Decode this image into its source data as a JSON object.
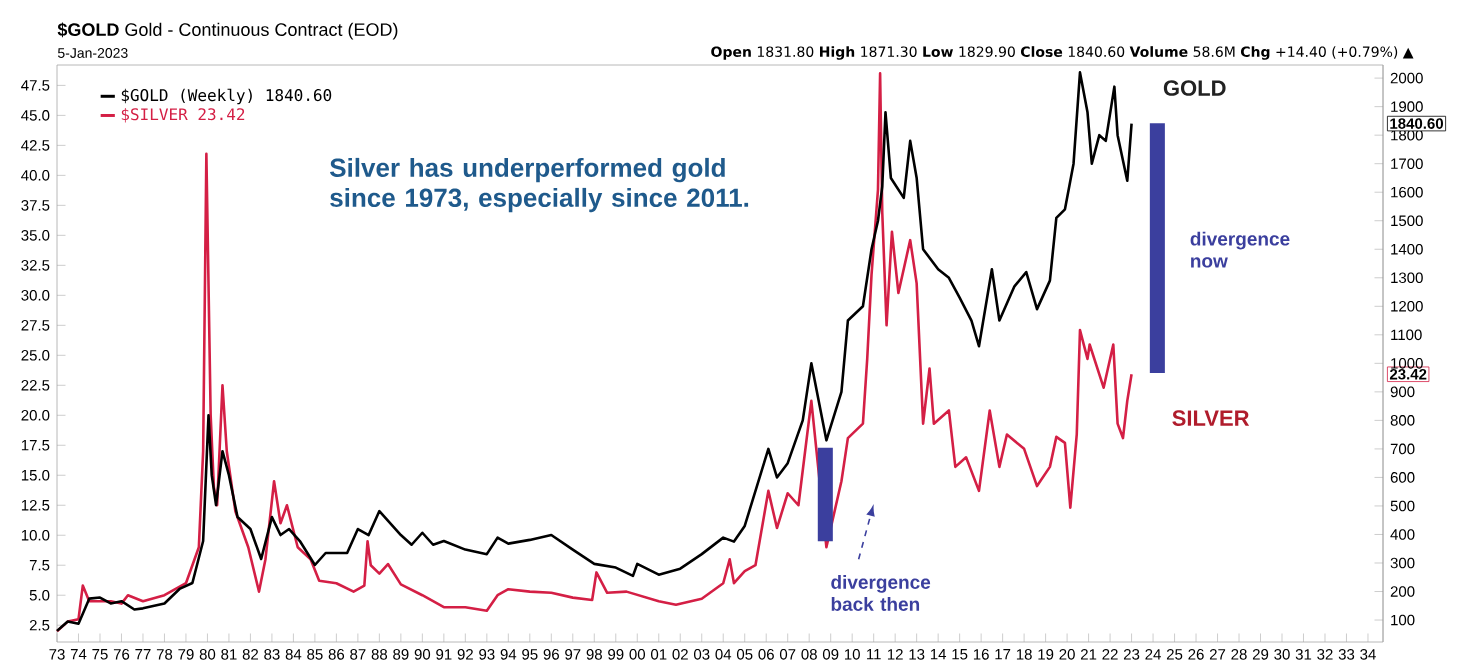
{
  "chart_data": {
    "type": "line",
    "title": "**$GOLD** Gold - Continuous Contract (EOD)",
    "subtitle": "5-Jan-2023",
    "legend": "top left",
    "xlim": [
      1973,
      2034.7
    ],
    "xticks": [
      {
        "value": 1973,
        "label": "73"
      },
      {
        "value": 1974,
        "label": "74"
      },
      {
        "value": 1975,
        "label": "75"
      },
      {
        "value": 1976,
        "label": "76"
      },
      {
        "value": 1977,
        "label": "77"
      },
      {
        "value": 1978,
        "label": "78"
      },
      {
        "value": 1979,
        "label": "79"
      },
      {
        "value": 1980,
        "label": "80"
      },
      {
        "value": 1981,
        "label": "81"
      },
      {
        "value": 1982,
        "label": "82"
      },
      {
        "value": 1983,
        "label": "83"
      },
      {
        "value": 1984,
        "label": "84"
      },
      {
        "value": 1985,
        "label": "85"
      },
      {
        "value": 1986,
        "label": "86"
      },
      {
        "value": 1987,
        "label": "87"
      },
      {
        "value": 1988,
        "label": "88"
      },
      {
        "value": 1989,
        "label": "89"
      },
      {
        "value": 1990,
        "label": "90"
      },
      {
        "value": 1991,
        "label": "91"
      },
      {
        "value": 1992,
        "label": "92"
      },
      {
        "value": 1993,
        "label": "93"
      },
      {
        "value": 1994,
        "label": "94"
      },
      {
        "value": 1995,
        "label": "95"
      },
      {
        "value": 1996,
        "label": "96"
      },
      {
        "value": 1997,
        "label": "97"
      },
      {
        "value": 1998,
        "label": "98"
      },
      {
        "value": 1999,
        "label": "99"
      },
      {
        "value": 2000,
        "label": "00"
      },
      {
        "value": 2001,
        "label": "01"
      },
      {
        "value": 2002,
        "label": "02"
      },
      {
        "value": 2003,
        "label": "03"
      },
      {
        "value": 2004,
        "label": "04"
      },
      {
        "value": 2005,
        "label": "05"
      },
      {
        "value": 2006,
        "label": "06"
      },
      {
        "value": 2007,
        "label": "07"
      },
      {
        "value": 2008,
        "label": "08"
      },
      {
        "value": 2009,
        "label": "09"
      },
      {
        "value": 2010,
        "label": "10"
      },
      {
        "value": 2011,
        "label": "11"
      },
      {
        "value": 2012,
        "label": "12"
      },
      {
        "value": 2013,
        "label": "13"
      },
      {
        "value": 2014,
        "label": "14"
      },
      {
        "value": 2015,
        "label": "15"
      },
      {
        "value": 2016,
        "label": "16"
      },
      {
        "value": 2017,
        "label": "17"
      },
      {
        "value": 2018,
        "label": "18"
      },
      {
        "value": 2019,
        "label": "19"
      },
      {
        "value": 2020,
        "label": "20"
      },
      {
        "value": 2021,
        "label": "21"
      },
      {
        "value": 2022,
        "label": "22"
      },
      {
        "value": 2023,
        "label": "23"
      },
      {
        "value": 2024,
        "label": "24"
      },
      {
        "value": 2025,
        "label": "25"
      },
      {
        "value": 2026,
        "label": "26"
      },
      {
        "value": 2027,
        "label": "27"
      },
      {
        "value": 2028,
        "label": "28"
      },
      {
        "value": 2029,
        "label": "29"
      },
      {
        "value": 2030,
        "label": "30"
      },
      {
        "value": 2031,
        "label": "31"
      },
      {
        "value": 2032,
        "label": "32"
      },
      {
        "value": 2033,
        "label": "33"
      },
      {
        "value": 2034,
        "label": "34"
      }
    ],
    "ylim": [
      1.1,
      49.2
    ],
    "yticks": [
      2.5,
      {
        "value": 5,
        "label": "5.0"
      },
      7.5,
      {
        "value": 10,
        "label": "10.0"
      },
      12.5,
      {
        "value": 15,
        "label": "15.0"
      },
      17.5,
      {
        "value": 20,
        "label": "20.0"
      },
      22.5,
      {
        "value": 25,
        "label": "25.0"
      },
      27.5,
      {
        "value": 30,
        "label": "30.0"
      },
      32.5,
      {
        "value": 35,
        "label": "35.0"
      },
      37.5,
      {
        "value": 40,
        "label": "40.0"
      },
      42.5,
      {
        "value": 45,
        "label": "45.0"
      },
      47.5
    ],
    "y2lim": [
      23,
      2046
    ],
    "y2ticks": [
      100,
      200,
      300,
      400,
      500,
      600,
      700,
      800,
      900,
      1000,
      1100,
      1200,
      1300,
      1400,
      1500,
      1600,
      1700,
      1800,
      1900,
      2000
    ],
    "series": [
      {
        "name": "$GOLD (Weekly) 1840.60",
        "color": "#000000",
        "axis": "y2",
        "x": [
          1973.0,
          1973.5,
          1974.0,
          1974.5,
          1975.0,
          1975.5,
          1976.0,
          1976.6,
          1977.0,
          1978.0,
          1978.7,
          1979.3,
          1979.8,
          1980.05,
          1980.2,
          1980.4,
          1980.7,
          1981.0,
          1981.4,
          1982.0,
          1982.5,
          1983.0,
          1983.4,
          1983.8,
          1984.3,
          1985.0,
          1985.5,
          1986.5,
          1987.0,
          1987.5,
          1988.0,
          1988.5,
          1989.0,
          1989.5,
          1990.0,
          1990.5,
          1991.0,
          1992.0,
          1993.0,
          1993.5,
          1994.0,
          1995.0,
          1996.0,
          1997.0,
          1998.0,
          1999.0,
          1999.8,
          2000.0,
          2001.0,
          2002.0,
          2003.0,
          2004.0,
          2004.5,
          2005.0,
          2006.1,
          2006.5,
          2007.0,
          2007.7,
          2008.1,
          2008.8,
          2009.5,
          2009.8,
          2010.5,
          2010.9,
          2011.2,
          2011.4,
          2011.55,
          2011.8,
          2012.4,
          2012.7,
          2013.0,
          2013.3,
          2014.0,
          2014.5,
          2015.0,
          2015.55,
          2015.9,
          2016.5,
          2016.85,
          2017.55,
          2018.1,
          2018.6,
          2019.2,
          2019.5,
          2019.9,
          2020.3,
          2020.6,
          2020.95,
          2021.15,
          2021.5,
          2021.8,
          2022.2,
          2022.35,
          2022.8,
          2023.0
        ],
        "values": [
          62,
          95,
          87,
          175,
          179,
          158,
          166,
          137,
          141,
          158,
          209,
          230,
          377,
          818,
          608,
          503,
          692,
          608,
          461,
          419,
          314,
          461,
          398,
          419,
          377,
          293,
          335,
          335,
          419,
          398,
          482,
          440,
          398,
          364,
          406,
          364,
          377,
          347,
          331,
          389,
          368,
          381,
          398,
          347,
          297,
          284,
          255,
          297,
          259,
          280,
          331,
          389,
          375,
          430,
          700,
          600,
          650,
          800,
          1000,
          730,
          900,
          1150,
          1200,
          1400,
          1500,
          1620,
          1880,
          1650,
          1580,
          1780,
          1650,
          1400,
          1330,
          1300,
          1230,
          1150,
          1060,
          1330,
          1150,
          1270,
          1320,
          1190,
          1290,
          1510,
          1540,
          1700,
          2020,
          1880,
          1700,
          1800,
          1780,
          1970,
          1800,
          1640,
          1840.6
        ]
      },
      {
        "name": "$SILVER 23.42",
        "color": "#d41f45",
        "axis": "y",
        "x": [
          1973.0,
          1973.5,
          1974.0,
          1974.2,
          1974.5,
          1975.0,
          1975.5,
          1976.0,
          1976.3,
          1977.0,
          1978.0,
          1979.0,
          1979.6,
          1979.8,
          1979.95,
          1980.15,
          1980.3,
          1980.45,
          1980.7,
          1980.9,
          1981.3,
          1981.9,
          1982.4,
          1982.7,
          1983.1,
          1983.4,
          1983.7,
          1984.2,
          1984.8,
          1985.2,
          1986.0,
          1986.8,
          1987.3,
          1987.45,
          1987.6,
          1988.0,
          1988.4,
          1989.0,
          1990.0,
          1991.0,
          1992.0,
          1993.0,
          1993.5,
          1994.0,
          1995.0,
          1996.0,
          1997.0,
          1997.9,
          1998.1,
          1998.6,
          1999.5,
          2001.0,
          2001.8,
          2003.0,
          2004.0,
          2004.3,
          2004.5,
          2005.0,
          2005.5,
          2006.1,
          2006.5,
          2007.0,
          2007.5,
          2008.1,
          2008.8,
          2009.5,
          2009.8,
          2010.5,
          2010.7,
          2010.9,
          2011.2,
          2011.3,
          2011.4,
          2011.6,
          2011.85,
          2012.15,
          2012.7,
          2013.0,
          2013.3,
          2013.6,
          2013.8,
          2014.5,
          2014.8,
          2015.3,
          2015.9,
          2016.4,
          2016.85,
          2017.2,
          2018.0,
          2018.6,
          2019.2,
          2019.5,
          2019.9,
          2020.15,
          2020.45,
          2020.6,
          2020.95,
          2021.05,
          2021.7,
          2022.15,
          2022.35,
          2022.6,
          2022.8,
          2023.0
        ],
        "values": [
          2.0,
          2.8,
          3.0,
          5.8,
          4.5,
          4.5,
          4.5,
          4.3,
          5.0,
          4.5,
          5.0,
          6.0,
          9.0,
          17,
          41.8,
          20,
          14,
          12.5,
          22.5,
          17,
          12,
          9,
          5.3,
          8,
          14.5,
          11,
          12.5,
          9,
          8,
          6.2,
          6.0,
          5.3,
          5.8,
          9.5,
          7.5,
          6.8,
          7.6,
          5.9,
          5.0,
          4.0,
          4.0,
          3.7,
          5.0,
          5.5,
          5.3,
          5.2,
          4.8,
          4.6,
          6.9,
          5.2,
          5.3,
          4.5,
          4.2,
          4.7,
          6.0,
          8.0,
          6.0,
          7.0,
          7.5,
          13.7,
          10.6,
          13.5,
          12.5,
          21.2,
          9.0,
          14.5,
          18.1,
          19.3,
          24.7,
          31.7,
          38.8,
          48.5,
          36.9,
          27.5,
          35.3,
          30.2,
          34.6,
          31,
          19.3,
          23.9,
          19.3,
          20.4,
          15.7,
          16.5,
          13.7,
          20.4,
          15.7,
          18.4,
          17.2,
          14.1,
          15.7,
          18.2,
          17.7,
          12.3,
          18.4,
          27.1,
          24.7,
          25.9,
          22.3,
          25.9,
          19.3,
          18.1,
          21.2,
          23.42
        ]
      },
      {
        "type": "bar",
        "color": "#3b3f9e",
        "axis": "y",
        "x": [
          2008.75
        ],
        "base": [
          9.5
        ],
        "values": [
          7.8
        ]
      },
      {
        "type": "bar",
        "color": "#3b3f9e",
        "axis": "y2",
        "x": [
          2024.2
        ],
        "base": [
          966
        ],
        "values": [
          876
        ]
      }
    ],
    "annotations": [
      "**Open** 1831.80 **High** 1871.30 **Low** 1829.90 **Close** 1840.60 **Volume** 58.6M **Chg** +14.40 (+0.79%) ▲",
      "Silver has underperformed gold since 1973, especially since 2011.",
      "GOLD",
      "SILVER",
      "divergence now",
      "divergence back then",
      "1840.60",
      "23.42"
    ]
  }
}
